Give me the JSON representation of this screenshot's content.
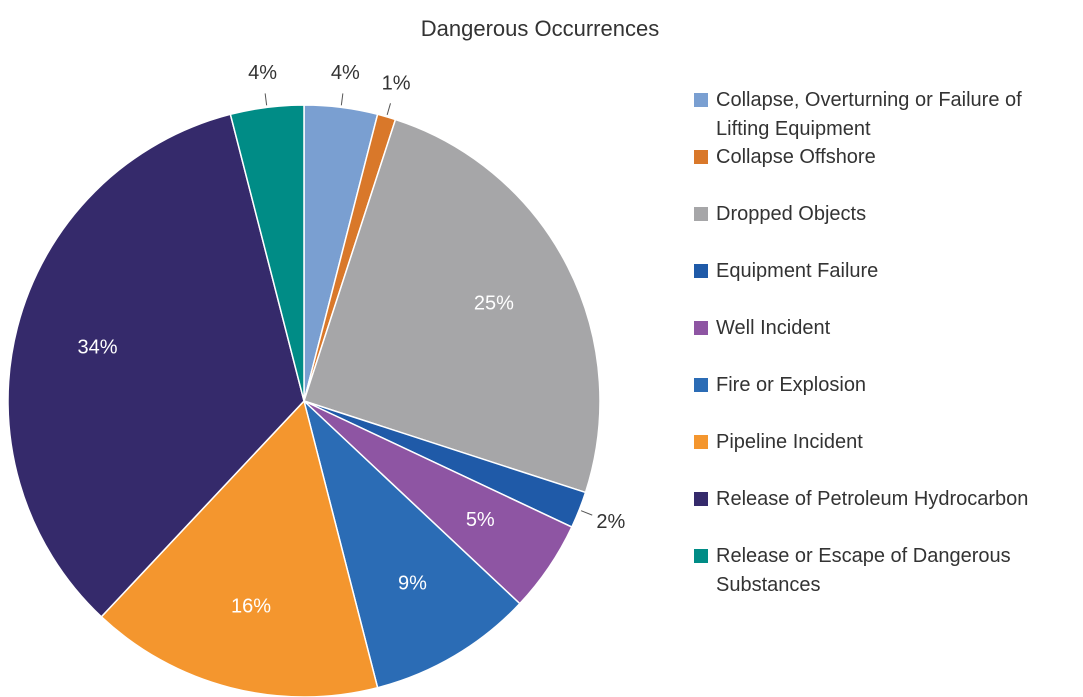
{
  "chart_data": {
    "type": "pie",
    "title": "Dangerous Occurrences",
    "categories": [
      "Collapse, Overturning or Failure of Lifting Equipment",
      "Collapse Offshore",
      "Dropped Objects",
      "Equipment Failure",
      "Well Incident",
      "Fire or Explosion",
      "Pipeline Incident",
      "Release of Petroleum Hydrocarbon",
      "Release or Escape of Dangerous Substances"
    ],
    "values": [
      4,
      1,
      25,
      2,
      5,
      9,
      16,
      34,
      4
    ],
    "value_labels": [
      "4%",
      "1%",
      "25%",
      "2%",
      "5%",
      "9%",
      "16%",
      "34%",
      "4%"
    ],
    "colors": [
      "#7a9fd1",
      "#d9782a",
      "#a6a6a8",
      "#1f5aa8",
      "#8e55a3",
      "#2b6cb5",
      "#f4962e",
      "#352a6b",
      "#008c86"
    ],
    "legend": "right"
  }
}
